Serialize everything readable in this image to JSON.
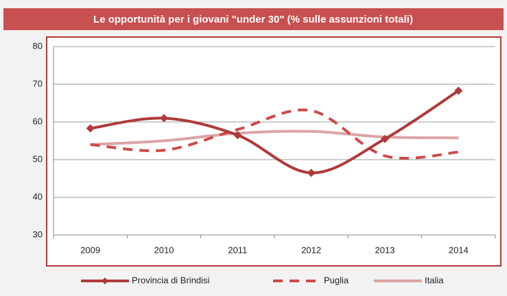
{
  "chart_data": {
    "type": "line",
    "title": "Le opportunità per i giovani \"under 30\" (% sulle assunzioni totali)",
    "categories": [
      "2009",
      "2010",
      "2011",
      "2012",
      "2013",
      "2014"
    ],
    "series": [
      {
        "name": "Provincia di Brindisi",
        "color": "#b03a3a",
        "values": [
          58.3,
          61,
          56.5,
          46.5,
          55.5,
          68.3
        ]
      },
      {
        "name": "Puglia",
        "color": "#cc4a4a",
        "values": [
          54,
          52.5,
          58,
          63,
          51,
          52
        ]
      },
      {
        "name": "Italia",
        "color": "#dba4a4",
        "values": [
          54,
          55,
          57,
          57.5,
          56,
          55.8
        ]
      }
    ],
    "ylim": [
      30,
      80
    ],
    "yticks": [
      30,
      40,
      50,
      60,
      70,
      80
    ],
    "grid": true,
    "legend": "bottom"
  }
}
